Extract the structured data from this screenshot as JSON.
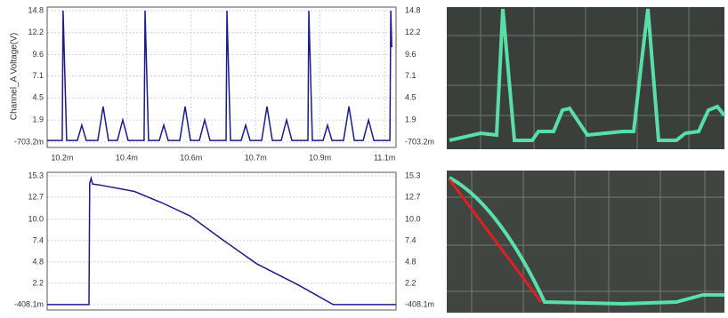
{
  "chart_data": [
    {
      "type": "line",
      "ylabel": "Channel_A Voltage(V)",
      "color": "#1c1c8a",
      "grid": true,
      "xlim": [
        0.010158,
        0.011132
      ],
      "xticks": [
        {
          "value": 0.0102,
          "label": "10.2m"
        },
        {
          "value": 0.01038,
          "label": "10.4m"
        },
        {
          "value": 0.01056,
          "label": "10.6m"
        },
        {
          "value": 0.01074,
          "label": "10.7m"
        },
        {
          "value": 0.01092,
          "label": "10.9m"
        },
        {
          "value": 0.0111,
          "label": "11.1m"
        }
      ],
      "ylim": [
        -0.7032,
        14.8
      ],
      "yticks": [
        14.8,
        12.2,
        9.6,
        7.1,
        4.5,
        1.9,
        {
          "value": -0.7032,
          "label": "-703.2m"
        }
      ],
      "x": [
        0.010158,
        0.0102,
        0.0102025,
        0.0102124,
        0.0102423,
        0.0102547,
        0.0102671,
        0.0102994,
        0.0103144,
        0.0103293,
        0.0103541,
        0.010369,
        0.010384,
        0.0104287,
        0.0104312,
        0.0104411,
        0.010471,
        0.0104834,
        0.0104958,
        0.0105281,
        0.0105431,
        0.010558,
        0.0105828,
        0.0105977,
        0.0106127,
        0.0106574,
        0.0106599,
        0.0106698,
        0.0106997,
        0.0107121,
        0.0107245,
        0.0107568,
        0.0107718,
        0.0107867,
        0.0108115,
        0.0108264,
        0.0108414,
        0.0108861,
        0.0108886,
        0.0108985,
        0.0109284,
        0.0109408,
        0.0109532,
        0.0109855,
        0.0110005,
        0.0110154,
        0.0110402,
        0.0110551,
        0.0110701,
        0.0111148,
        0.0111173,
        0.01112
      ],
      "values": [
        -0.5,
        -0.5,
        14.8,
        -0.5,
        -0.5,
        1.3,
        -0.5,
        -0.5,
        3.5,
        -0.5,
        -0.5,
        1.9,
        -0.5,
        -0.5,
        14.8,
        -0.5,
        -0.5,
        1.3,
        -0.5,
        -0.5,
        3.5,
        -0.5,
        -0.5,
        1.9,
        -0.5,
        -0.5,
        14.8,
        -0.5,
        -0.5,
        1.3,
        -0.5,
        -0.5,
        3.5,
        -0.5,
        -0.5,
        1.9,
        -0.5,
        -0.5,
        14.8,
        -0.5,
        -0.5,
        1.3,
        -0.5,
        -0.5,
        3.5,
        -0.5,
        -0.5,
        1.9,
        -0.5,
        -0.5,
        14.8,
        10.5
      ]
    },
    {
      "type": "line",
      "color": "#1c1c8a",
      "grid": true,
      "xlim": [
        0,
        1
      ],
      "ylim": [
        -0.4081,
        15.3
      ],
      "yticks": [
        15.3,
        12.7,
        {
          "value": 10,
          "label": "10.0"
        },
        7.4,
        4.8,
        2.2,
        {
          "value": -0.4081,
          "label": "-408.1m"
        }
      ],
      "x": [
        0,
        0.12,
        0.122,
        0.126,
        0.13,
        0.15,
        0.25,
        0.33,
        0.41,
        0.5,
        0.6,
        0.72,
        0.82,
        0.88,
        1
      ],
      "values": [
        -0.4,
        -0.4,
        14.4,
        15.0,
        14.3,
        14.2,
        13.4,
        12.0,
        10.4,
        7.6,
        4.6,
        2.0,
        -0.4,
        -0.4,
        -0.4
      ]
    }
  ]
}
